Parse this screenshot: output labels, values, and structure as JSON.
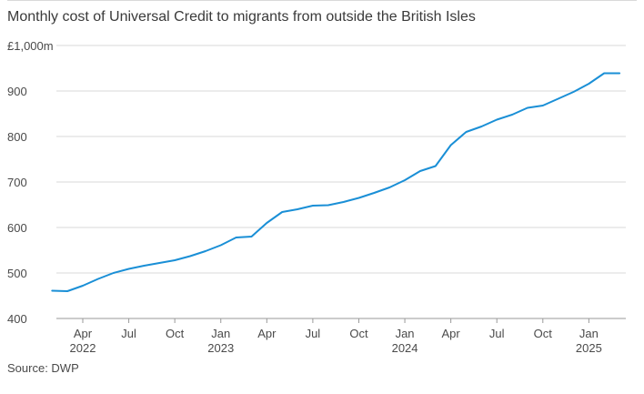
{
  "chart_data": {
    "type": "line",
    "title": "Monthly cost of Universal Credit to migrants from outside the British Isles",
    "source": "Source: DWP",
    "ylim": [
      400,
      1000
    ],
    "yticks": [
      400,
      500,
      600,
      700,
      800,
      900,
      1000
    ],
    "ytick_labels": [
      "400",
      "500",
      "600",
      "700",
      "800",
      "900",
      "£1,000m"
    ],
    "grid": true,
    "color": "#1a8fd6",
    "x_ticks": [
      {
        "date": "2022-04",
        "label": "Apr",
        "year": "2022"
      },
      {
        "date": "2022-07",
        "label": "Jul",
        "year": ""
      },
      {
        "date": "2022-10",
        "label": "Oct",
        "year": ""
      },
      {
        "date": "2023-01",
        "label": "Jan",
        "year": "2023"
      },
      {
        "date": "2023-04",
        "label": "Apr",
        "year": ""
      },
      {
        "date": "2023-07",
        "label": "Jul",
        "year": ""
      },
      {
        "date": "2023-10",
        "label": "Oct",
        "year": ""
      },
      {
        "date": "2024-01",
        "label": "Jan",
        "year": "2024"
      },
      {
        "date": "2024-04",
        "label": "Apr",
        "year": ""
      },
      {
        "date": "2024-07",
        "label": "Jul",
        "year": ""
      },
      {
        "date": "2024-10",
        "label": "Oct",
        "year": ""
      },
      {
        "date": "2025-01",
        "label": "Jan",
        "year": "2025"
      }
    ],
    "x": [
      "2022-02",
      "2022-03",
      "2022-04",
      "2022-05",
      "2022-06",
      "2022-07",
      "2022-08",
      "2022-09",
      "2022-10",
      "2022-11",
      "2022-12",
      "2023-01",
      "2023-02",
      "2023-03",
      "2023-04",
      "2023-05",
      "2023-06",
      "2023-07",
      "2023-08",
      "2023-09",
      "2023-10",
      "2023-11",
      "2023-12",
      "2024-01",
      "2024-02",
      "2024-03",
      "2024-04",
      "2024-05",
      "2024-06",
      "2024-07",
      "2024-08",
      "2024-09",
      "2024-10",
      "2024-11",
      "2024-12",
      "2025-01",
      "2025-02",
      "2025-03"
    ],
    "values": [
      461,
      460,
      472,
      487,
      500,
      509,
      516,
      522,
      528,
      537,
      548,
      561,
      578,
      580,
      610,
      634,
      640,
      648,
      649,
      656,
      665,
      676,
      688,
      704,
      724,
      735,
      781,
      810,
      822,
      837,
      848,
      863,
      868,
      883,
      898,
      916,
      939,
      939
    ]
  }
}
